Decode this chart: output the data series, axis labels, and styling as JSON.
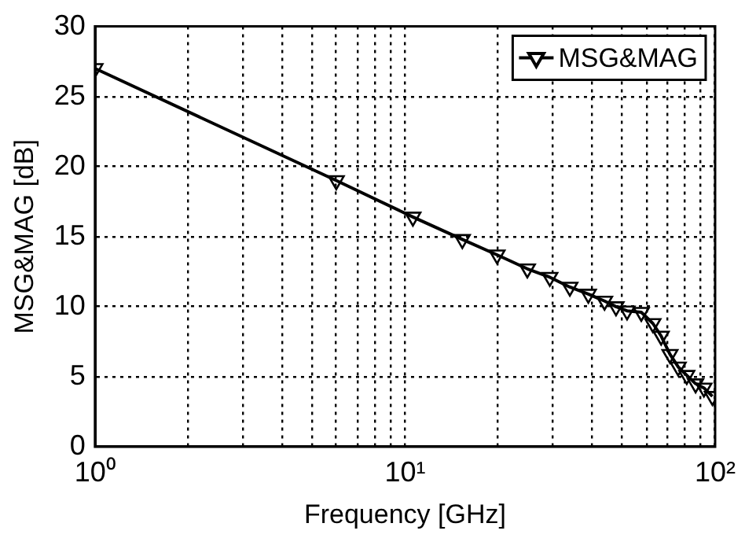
{
  "chart_data": {
    "type": "line",
    "xlabel": "Frequency [GHz]",
    "ylabel": "MSG&MAG [dB]",
    "series": [
      {
        "name": "MSG&MAG",
        "color": "#000000",
        "x": [
          1,
          6,
          10.6,
          15.3,
          19.8,
          24.8,
          29.3,
          34,
          39,
          44,
          47.9,
          52,
          57.8,
          63,
          67,
          71.5,
          76,
          81,
          86.5,
          92,
          98
        ],
        "values": [
          27,
          19,
          16.4,
          14.8,
          13.7,
          12.7,
          12.1,
          11.4,
          10.9,
          10.4,
          10,
          9.7,
          9.6,
          8.8,
          7.9,
          6.6,
          5.7,
          5.1,
          4.5,
          4.2,
          3.6
        ]
      }
    ],
    "log": "x",
    "xlim": [
      1,
      100
    ],
    "xticks": [
      {
        "value": 1,
        "label": "10⁰"
      },
      {
        "value": 2,
        "label": null
      },
      {
        "value": 3,
        "label": null
      },
      {
        "value": 4,
        "label": null
      },
      {
        "value": 5,
        "label": null
      },
      {
        "value": 6,
        "label": null
      },
      {
        "value": 7,
        "label": null
      },
      {
        "value": 8,
        "label": null
      },
      {
        "value": 9,
        "label": null
      },
      {
        "value": 10,
        "label": "10¹"
      },
      {
        "value": 20,
        "label": null
      },
      {
        "value": 30,
        "label": null
      },
      {
        "value": 40,
        "label": null
      },
      {
        "value": 50,
        "label": null
      },
      {
        "value": 60,
        "label": null
      },
      {
        "value": 70,
        "label": null
      },
      {
        "value": 80,
        "label": null
      },
      {
        "value": 90,
        "label": null
      },
      {
        "value": 100,
        "label": "10²"
      }
    ],
    "ylim": [
      0,
      30
    ],
    "yticks": [
      0,
      5,
      10,
      15,
      20,
      25,
      30
    ],
    "grid": true,
    "legend": "top right",
    "marker": "triangle",
    "line_style": "solid"
  }
}
